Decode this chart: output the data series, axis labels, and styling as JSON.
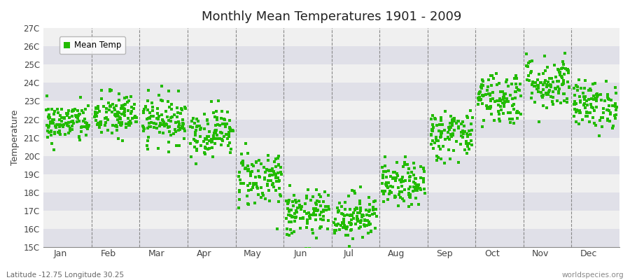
{
  "title": "Monthly Mean Temperatures 1901 - 2009",
  "ylabel": "Temperature",
  "bottom_left": "Latitude -12.75 Longitude 30.25",
  "bottom_right": "worldspecies.org",
  "legend_label": "Mean Temp",
  "marker_color": "#22bb00",
  "background_color": "#ffffff",
  "band_color_light": "#f0f0f0",
  "band_color_dark": "#e0e0e8",
  "ylim": [
    15,
    27
  ],
  "yticks": [
    15,
    16,
    17,
    18,
    19,
    20,
    21,
    22,
    23,
    24,
    25,
    26,
    27
  ],
  "ytick_labels": [
    "15C",
    "16C",
    "17C",
    "18C",
    "19C",
    "20C",
    "21C",
    "22C",
    "23C",
    "24C",
    "25C",
    "26C",
    "27C"
  ],
  "months": [
    "Jan",
    "Feb",
    "Mar",
    "Apr",
    "May",
    "Jun",
    "Jul",
    "Aug",
    "Sep",
    "Oct",
    "Nov",
    "Dec"
  ],
  "n_years": 109,
  "mean_temps_by_month": [
    21.8,
    22.2,
    22.0,
    21.3,
    18.8,
    16.8,
    16.7,
    18.4,
    21.2,
    23.2,
    24.0,
    22.8
  ],
  "std_by_month": [
    0.55,
    0.65,
    0.65,
    0.65,
    0.8,
    0.65,
    0.65,
    0.6,
    0.7,
    0.75,
    0.75,
    0.65
  ],
  "seed": 42
}
